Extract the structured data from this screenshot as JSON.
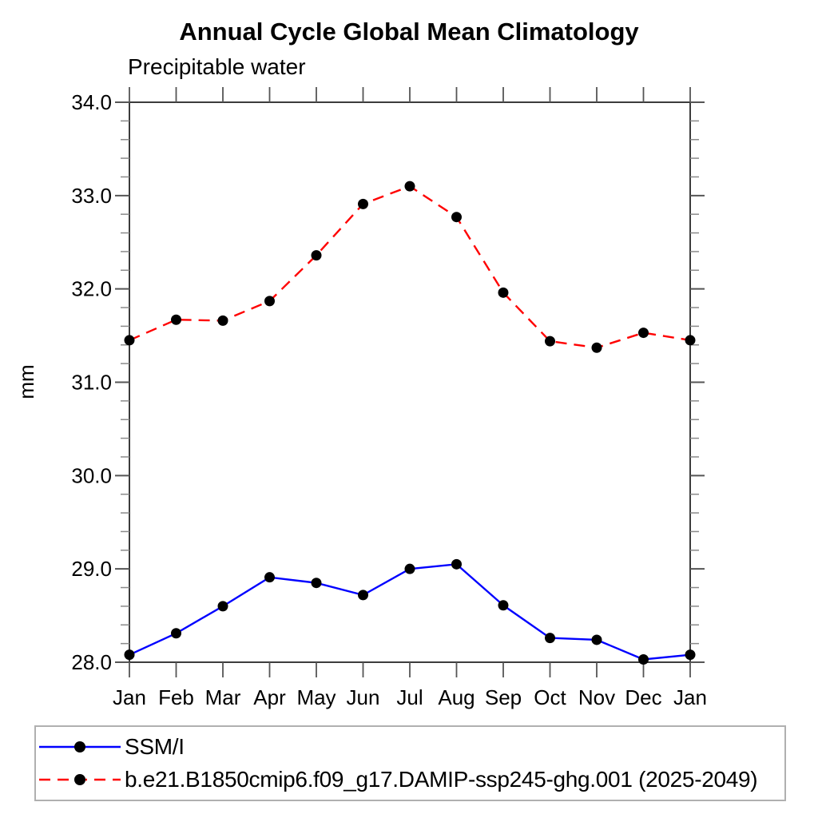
{
  "title": "Annual Cycle Global Mean Climatology",
  "subtitle": "Precipitable water",
  "legend": {
    "items": [
      {
        "label": "SSM/I",
        "color": "#0000ff",
        "line_style": "solid",
        "marker_color": "#000000"
      },
      {
        "label": "b.e21.B1850cmip6.f09_g17.DAMIP-ssp245-ghg.001 (2025-2049)",
        "color": "#ff0000",
        "line_style": "dashed",
        "marker_color": "#000000"
      }
    ]
  },
  "chart_data": {
    "type": "line",
    "title": "Annual Cycle Global Mean Climatology",
    "subtitle": "Precipitable water",
    "xlabel": "",
    "ylabel": "mm",
    "x_categories": [
      "Jan",
      "Feb",
      "Mar",
      "Apr",
      "May",
      "Jun",
      "Jul",
      "Aug",
      "Sep",
      "Oct",
      "Nov",
      "Dec",
      "Jan"
    ],
    "ylim": [
      28.0,
      34.0
    ],
    "ytick_interval": 1.0,
    "ytick_minor_interval": 0.2,
    "ytick_labels": [
      "28.0",
      "29.0",
      "30.0",
      "31.0",
      "32.0",
      "33.0",
      "34.0"
    ],
    "grid": false,
    "legend_position": "bottom-left",
    "axis_color": "#3c3c3c",
    "series": [
      {
        "name": "SSM/I",
        "color": "#0000ff",
        "line_style": "solid",
        "marker": "circle",
        "marker_color": "#000000",
        "values": [
          28.08,
          28.31,
          28.6,
          28.91,
          28.85,
          28.72,
          29.0,
          29.05,
          28.61,
          28.26,
          28.24,
          28.03,
          28.08
        ]
      },
      {
        "name": "b.e21.B1850cmip6.f09_g17.DAMIP-ssp245-ghg.001 (2025-2049)",
        "color": "#ff0000",
        "line_style": "dashed",
        "marker": "circle",
        "marker_color": "#000000",
        "values": [
          31.45,
          31.67,
          31.66,
          31.87,
          32.36,
          32.91,
          33.1,
          32.77,
          31.96,
          31.44,
          31.37,
          31.53,
          31.45
        ]
      }
    ]
  }
}
